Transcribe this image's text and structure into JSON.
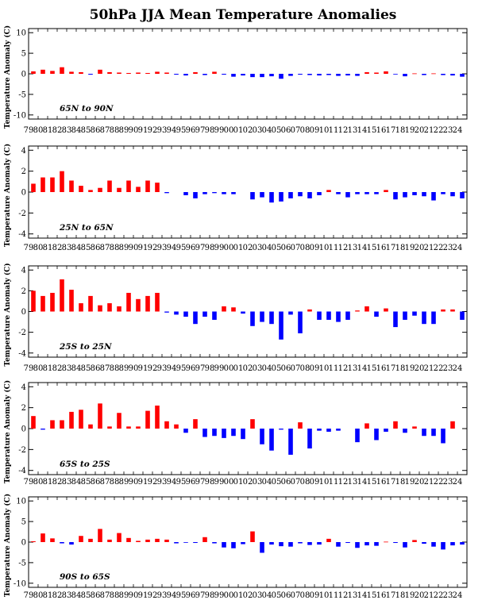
{
  "title": "50hPa JJA Mean Temperature Anomalies",
  "colors": {
    "positive": "#ff0000",
    "negative": "#0000ff",
    "axis": "#000000"
  },
  "years": [
    "79",
    "80",
    "81",
    "82",
    "83",
    "84",
    "85",
    "86",
    "87",
    "88",
    "89",
    "90",
    "91",
    "92",
    "93",
    "94",
    "95",
    "96",
    "97",
    "98",
    "99",
    "00",
    "01",
    "02",
    "03",
    "04",
    "05",
    "06",
    "07",
    "08",
    "09",
    "10",
    "11",
    "12",
    "13",
    "14",
    "15",
    "16",
    "17",
    "18",
    "19",
    "20",
    "21",
    "22",
    "23",
    "24"
  ],
  "chart_data": [
    {
      "type": "bar",
      "region_label": "65N to 90N",
      "ylabel": "Temperature Anomaly (C)",
      "ylim": [
        -11,
        11
      ],
      "yticks": [
        -10,
        -5,
        0,
        5,
        10
      ],
      "values": [
        0.6,
        1.0,
        0.7,
        1.6,
        0.5,
        0.4,
        -0.2,
        1.0,
        0.4,
        0.3,
        0.2,
        0.3,
        0.2,
        0.5,
        0.3,
        -0.2,
        -0.4,
        0.4,
        -0.3,
        0.5,
        -0.2,
        -0.7,
        -0.4,
        -0.8,
        -0.8,
        -0.6,
        -1.2,
        -0.5,
        -0.2,
        -0.3,
        -0.4,
        -0.3,
        -0.5,
        -0.4,
        -0.5,
        0.4,
        0.3,
        0.6,
        -0.1,
        -0.6,
        0.1,
        -0.3,
        0.1,
        -0.3,
        -0.4,
        -0.7
      ]
    },
    {
      "type": "bar",
      "region_label": "25N to 65N",
      "ylabel": "Temperature Anomaly (C)",
      "ylim": [
        -4.4,
        4.4
      ],
      "yticks": [
        -4,
        -2,
        0,
        2,
        4
      ],
      "values": [
        0.8,
        1.4,
        1.4,
        2.0,
        1.1,
        0.6,
        0.2,
        0.4,
        1.1,
        0.4,
        1.1,
        0.5,
        1.1,
        0.9,
        -0.1,
        0.0,
        -0.3,
        -0.6,
        -0.2,
        -0.1,
        -0.2,
        -0.2,
        0.0,
        -0.7,
        -0.5,
        -1.0,
        -0.9,
        -0.6,
        -0.4,
        -0.6,
        -0.3,
        0.2,
        -0.2,
        -0.5,
        -0.2,
        -0.2,
        -0.2,
        0.2,
        -0.7,
        -0.5,
        -0.3,
        -0.4,
        -0.8,
        -0.2,
        -0.4,
        -0.6
      ]
    },
    {
      "type": "bar",
      "region_label": "25S to 25N",
      "ylabel": "Temperature Anomaly (C)",
      "ylim": [
        -4.4,
        4.4
      ],
      "yticks": [
        -4,
        -2,
        0,
        2,
        4
      ],
      "values": [
        2.0,
        1.5,
        1.8,
        3.1,
        2.1,
        0.8,
        1.5,
        0.6,
        0.8,
        0.5,
        1.8,
        1.2,
        1.5,
        1.8,
        -0.1,
        -0.3,
        -0.5,
        -1.2,
        -0.5,
        -0.8,
        0.5,
        0.4,
        -0.2,
        -1.4,
        -1.0,
        -1.2,
        -2.7,
        -0.3,
        -2.1,
        0.2,
        -0.8,
        -0.8,
        -1.0,
        -0.8,
        0.1,
        0.5,
        -0.5,
        0.3,
        -1.5,
        -0.8,
        -0.4,
        -1.2,
        -1.2,
        0.2,
        0.2,
        -0.8
      ]
    },
    {
      "type": "bar",
      "region_label": "65S to 25S",
      "ylabel": "Temperature Anomaly (C)",
      "ylim": [
        -4.4,
        4.4
      ],
      "yticks": [
        -4,
        -2,
        0,
        2,
        4
      ],
      "values": [
        1.2,
        -0.1,
        0.8,
        0.8,
        1.6,
        1.8,
        0.4,
        2.4,
        0.2,
        1.5,
        0.2,
        0.2,
        1.7,
        2.2,
        0.7,
        0.4,
        -0.4,
        0.9,
        -0.8,
        -0.7,
        -0.9,
        -0.7,
        -1.0,
        0.9,
        -1.5,
        -2.1,
        -0.1,
        -2.5,
        0.6,
        -1.9,
        -0.2,
        -0.3,
        -0.2,
        0.0,
        -1.3,
        0.5,
        -1.1,
        -0.3,
        0.7,
        -0.4,
        0.2,
        -0.7,
        -0.7,
        -1.4,
        0.7,
        0.0
      ]
    },
    {
      "type": "bar",
      "region_label": "90S to 65S",
      "ylabel": "Temperature Anomaly (C)",
      "ylim": [
        -11,
        11
      ],
      "yticks": [
        -10,
        -5,
        0,
        5,
        10
      ],
      "values": [
        0.2,
        2.1,
        0.9,
        -0.3,
        -0.6,
        1.5,
        0.8,
        3.2,
        0.6,
        2.2,
        1.0,
        0.3,
        0.6,
        0.8,
        0.6,
        -0.3,
        -0.1,
        -0.2,
        1.2,
        -0.3,
        -1.3,
        -1.5,
        -0.5,
        2.6,
        -2.6,
        -0.6,
        -1.0,
        -1.1,
        -0.3,
        -0.7,
        -0.6,
        0.8,
        -1.1,
        -0.2,
        -1.4,
        -0.8,
        -0.9,
        0.1,
        -0.2,
        -1.3,
        0.5,
        -0.4,
        -1.1,
        -1.8,
        -0.8,
        -0.6
      ]
    }
  ]
}
